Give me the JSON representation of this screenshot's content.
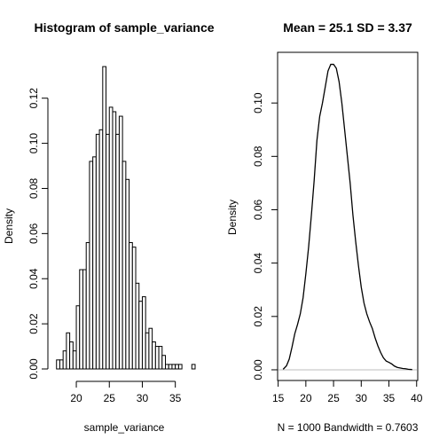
{
  "chart_data": [
    {
      "type": "bar",
      "title": "Histogram of sample_variance",
      "xlabel": "sample_variance",
      "ylabel": "Density",
      "bin_width": 0.5,
      "bins": [
        [
          17.0,
          0.004
        ],
        [
          17.5,
          0.004
        ],
        [
          18.0,
          0.008
        ],
        [
          18.5,
          0.016
        ],
        [
          19.0,
          0.012
        ],
        [
          19.5,
          0.008
        ],
        [
          20.0,
          0.028
        ],
        [
          20.5,
          0.044
        ],
        [
          21.0,
          0.044
        ],
        [
          21.5,
          0.056
        ],
        [
          22.0,
          0.092
        ],
        [
          22.5,
          0.094
        ],
        [
          23.0,
          0.104
        ],
        [
          23.5,
          0.106
        ],
        [
          24.0,
          0.134
        ],
        [
          24.5,
          0.104
        ],
        [
          25.0,
          0.116
        ],
        [
          25.5,
          0.114
        ],
        [
          26.0,
          0.104
        ],
        [
          26.5,
          0.112
        ],
        [
          27.0,
          0.092
        ],
        [
          27.5,
          0.084
        ],
        [
          28.0,
          0.056
        ],
        [
          28.5,
          0.054
        ],
        [
          29.0,
          0.038
        ],
        [
          29.5,
          0.03
        ],
        [
          30.0,
          0.032
        ],
        [
          30.5,
          0.016
        ],
        [
          31.0,
          0.018
        ],
        [
          31.5,
          0.012
        ],
        [
          32.0,
          0.01
        ],
        [
          32.5,
          0.01
        ],
        [
          33.0,
          0.006
        ],
        [
          33.5,
          0.002
        ],
        [
          34.0,
          0.002
        ],
        [
          34.5,
          0.002
        ],
        [
          35.0,
          0.002
        ],
        [
          35.5,
          0.002
        ],
        [
          37.5,
          0.002
        ]
      ],
      "xlim": [
        16.5,
        38.0
      ],
      "ylim": [
        0,
        0.136
      ],
      "xticks": [
        20,
        25,
        30,
        35
      ],
      "yticks": [
        0.0,
        0.02,
        0.04,
        0.06,
        0.08,
        0.1,
        0.12
      ],
      "ytick_labels": [
        "0.00",
        "0.02",
        "0.04",
        "0.06",
        "0.08",
        "0.10",
        "0.12"
      ]
    },
    {
      "type": "line",
      "title": "Mean =  25.1 SD =  3.37",
      "xlabel": "N = 1000   Bandwidth = 0.7603",
      "ylabel": "Density",
      "x": [
        15.9,
        16.5,
        17,
        17.5,
        18,
        18.5,
        19,
        19.5,
        20,
        20.5,
        21,
        21.5,
        22,
        22.5,
        23,
        23.5,
        24,
        24.5,
        25,
        25.5,
        26,
        26.5,
        27,
        27.5,
        28,
        28.5,
        29,
        29.5,
        30,
        30.5,
        31,
        31.5,
        32,
        32.5,
        33,
        33.5,
        34,
        34.5,
        35,
        35.5,
        36,
        36.5,
        37,
        37.5,
        38,
        38.5,
        39.2
      ],
      "y": [
        0.0002,
        0.0015,
        0.004,
        0.0085,
        0.0135,
        0.017,
        0.021,
        0.027,
        0.036,
        0.046,
        0.058,
        0.071,
        0.086,
        0.095,
        0.1,
        0.106,
        0.112,
        0.1145,
        0.1145,
        0.113,
        0.108,
        0.1,
        0.09,
        0.08,
        0.07,
        0.058,
        0.048,
        0.039,
        0.031,
        0.025,
        0.021,
        0.018,
        0.0155,
        0.012,
        0.009,
        0.0065,
        0.0045,
        0.0033,
        0.0028,
        0.0022,
        0.0014,
        0.0009,
        0.0007,
        0.0005,
        0.0004,
        0.0002,
        0.0001
      ],
      "xlim": [
        14.9,
        40.2
      ],
      "ylim": [
        -0.004,
        0.119
      ],
      "xticks": [
        15,
        20,
        25,
        30,
        35,
        40
      ],
      "yticks": [
        0.0,
        0.02,
        0.04,
        0.06,
        0.08,
        0.1
      ],
      "ytick_labels": [
        "0.00",
        "0.02",
        "0.04",
        "0.06",
        "0.08",
        "0.10"
      ],
      "grid": false
    }
  ]
}
